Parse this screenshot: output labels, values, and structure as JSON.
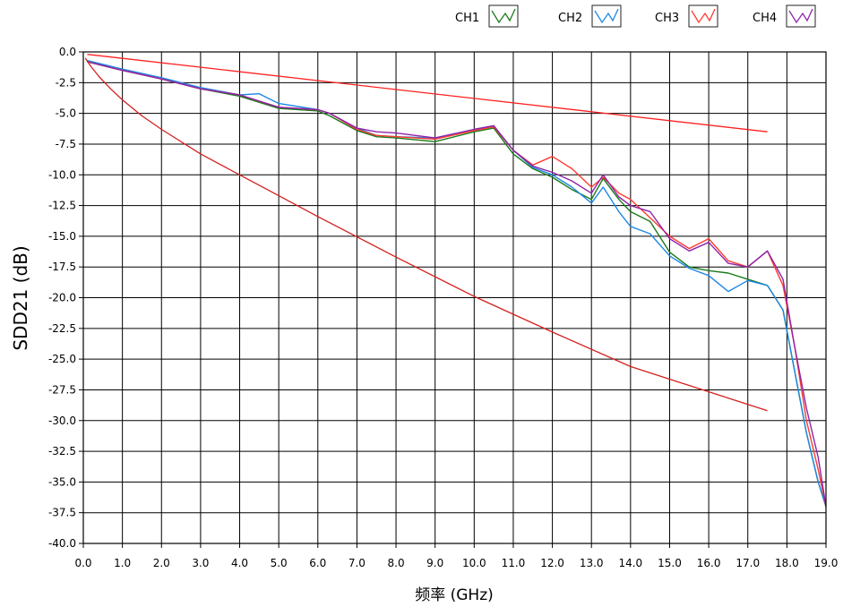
{
  "chart_data": {
    "type": "line",
    "xlabel": "频率 (GHz)",
    "ylabel": "SDD21 (dB)",
    "xlim": [
      0,
      19
    ],
    "ylim": [
      -40,
      0
    ],
    "grid": true,
    "legend_position": "top-right",
    "x_ticks": [
      "0.0",
      "1.0",
      "2.0",
      "3.0",
      "4.0",
      "5.0",
      "6.0",
      "7.0",
      "8.0",
      "9.0",
      "10.0",
      "11.0",
      "12.0",
      "13.0",
      "14.0",
      "15.0",
      "16.0",
      "17.0",
      "18.0",
      "19.0"
    ],
    "y_ticks": [
      "0.0",
      "-2.5",
      "-5.0",
      "-7.5",
      "-10.0",
      "-12.5",
      "-15.0",
      "-17.5",
      "-20.0",
      "-22.5",
      "-25.0",
      "-27.5",
      "-30.0",
      "-32.5",
      "-35.0",
      "-37.5",
      "-40.0"
    ],
    "series": [
      {
        "name": "CH1",
        "color": "#1a7a1a",
        "x": [
          0.1,
          1,
          2,
          3,
          4,
          5,
          6,
          6.3,
          7,
          7.5,
          8,
          9,
          10,
          10.5,
          11,
          11.5,
          12,
          12.5,
          13,
          13.3,
          13.7,
          14,
          14.5,
          15,
          15.5,
          16,
          16.5,
          17,
          17.5,
          17.9,
          18.2,
          18.5,
          18.8,
          19
        ],
        "y": [
          -0.8,
          -1.5,
          -2.2,
          -3,
          -3.6,
          -4.6,
          -4.8,
          -5.2,
          -6.4,
          -6.9,
          -7,
          -7.3,
          -6.5,
          -6.2,
          -8.3,
          -9.5,
          -10.2,
          -11.2,
          -12,
          -10.3,
          -12,
          -13,
          -13.8,
          -16.3,
          -17.5,
          -17.8,
          -18,
          -18.5,
          -19,
          -21,
          -26,
          -31,
          -35,
          -37
        ]
      },
      {
        "name": "CH2",
        "color": "#1e88e5",
        "x": [
          0.1,
          1,
          2,
          3,
          4,
          4.5,
          5,
          6,
          6.3,
          7,
          7.5,
          8,
          9,
          10,
          10.5,
          11,
          11.5,
          12,
          12.5,
          13,
          13.3,
          13.7,
          14,
          14.5,
          15,
          15.5,
          16,
          16.5,
          17,
          17.5,
          17.9,
          18.2,
          18.5,
          18.8,
          19
        ],
        "y": [
          -0.7,
          -1.4,
          -2.1,
          -2.9,
          -3.5,
          -3.4,
          -4.2,
          -4.7,
          -5,
          -6.2,
          -6.8,
          -6.9,
          -7,
          -6.3,
          -6,
          -8,
          -9.4,
          -10,
          -11,
          -12.3,
          -11,
          -13,
          -14.2,
          -14.8,
          -16.6,
          -17.6,
          -18.2,
          -19.5,
          -18.6,
          -19,
          -21,
          -26,
          -31,
          -35,
          -37
        ]
      },
      {
        "name": "CH3",
        "color": "#ff3b30",
        "x": [
          0.1,
          1,
          2,
          3,
          4,
          5,
          6,
          6.3,
          7,
          7.5,
          8,
          9,
          10,
          10.5,
          11,
          11.5,
          12,
          12.5,
          13,
          13.3,
          13.7,
          14,
          14.5,
          15,
          15.5,
          16,
          16.5,
          17,
          17.5,
          17.9,
          18.2,
          18.5,
          18.8,
          19
        ],
        "y": [
          -0.8,
          -1.5,
          -2.2,
          -3,
          -3.5,
          -4.5,
          -4.7,
          -5,
          -6.3,
          -6.8,
          -6.9,
          -7.1,
          -6.4,
          -6.1,
          -8,
          -9.2,
          -8.5,
          -9.5,
          -11,
          -10.2,
          -11.5,
          -12,
          -13.5,
          -15,
          -16,
          -15.2,
          -17,
          -17.5,
          -16.2,
          -19,
          -24,
          -30,
          -34,
          -37
        ]
      },
      {
        "name": "CH4",
        "color": "#8e24aa",
        "x": [
          0.1,
          1,
          2,
          3,
          4,
          5,
          6,
          6.3,
          7,
          7.5,
          8,
          9,
          10,
          10.5,
          11,
          11.5,
          12,
          12.5,
          13,
          13.3,
          13.7,
          14,
          14.5,
          15,
          15.5,
          16,
          16.5,
          17,
          17.5,
          17.9,
          18.2,
          18.5,
          18.8,
          19
        ],
        "y": [
          -0.8,
          -1.5,
          -2.2,
          -3,
          -3.5,
          -4.5,
          -4.7,
          -5,
          -6.2,
          -6.5,
          -6.6,
          -7,
          -6.3,
          -6,
          -8,
          -9.3,
          -9.8,
          -10.5,
          -11.5,
          -10,
          -11.8,
          -12.5,
          -13,
          -15.2,
          -16.2,
          -15.5,
          -17.2,
          -17.5,
          -16.2,
          -18.5,
          -24,
          -29,
          -33,
          -37
        ]
      },
      {
        "color": "#ff2020",
        "x": [
          0.1,
          17.5
        ],
        "y": [
          -0.2,
          -6.5
        ]
      },
      {
        "color": "#d42020",
        "x": [
          0.05,
          0.2,
          0.4,
          0.7,
          1,
          1.5,
          2,
          3,
          4,
          5,
          6,
          8,
          10,
          12,
          14,
          17.5
        ],
        "y": [
          -0.5,
          -1.2,
          -2,
          -3,
          -3.9,
          -5.2,
          -6.3,
          -8.3,
          -10,
          -11.7,
          -13.4,
          -16.7,
          -19.9,
          -22.8,
          -25.6,
          -29.2
        ]
      }
    ]
  }
}
